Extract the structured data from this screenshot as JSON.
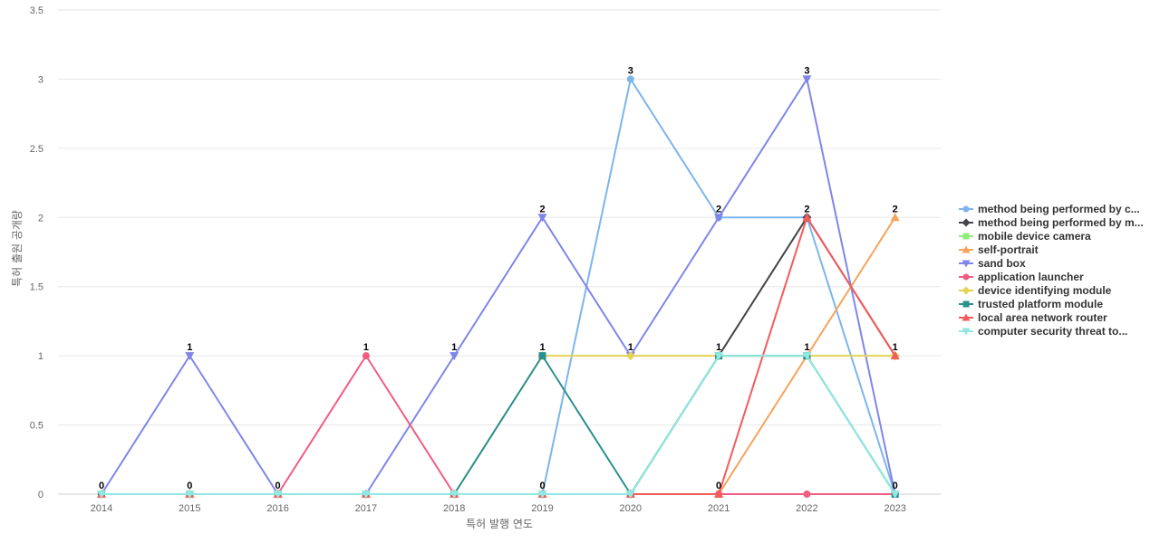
{
  "chart_data": {
    "type": "line",
    "xlabel": "특허 발행 연도",
    "ylabel": "특허 출원 공개량",
    "ylim": [
      0,
      3.5
    ],
    "yticks": [
      "0",
      "0.5",
      "1",
      "1.5",
      "2",
      "2.5",
      "3",
      "3.5"
    ],
    "grid": true,
    "legend_position": "right",
    "categories": [
      "2014",
      "2015",
      "2016",
      "2017",
      "2018",
      "2019",
      "2020",
      "2021",
      "2022",
      "2023"
    ],
    "series": [
      {
        "name": "method being performed by c...",
        "color": "#7cb5ec",
        "marker": "circle",
        "values": [
          0,
          0,
          0,
          0,
          0,
          0,
          3,
          2,
          2,
          0
        ]
      },
      {
        "name": "method being performed by m...",
        "color": "#434348",
        "marker": "diamond",
        "values": [
          0,
          0,
          0,
          0,
          0,
          0,
          0,
          1,
          2,
          1
        ]
      },
      {
        "name": "mobile device camera",
        "color": "#90ed7d",
        "marker": "square",
        "values": [
          0,
          0,
          0,
          0,
          0,
          0,
          0,
          1,
          1,
          0
        ]
      },
      {
        "name": "self-portrait",
        "color": "#f7a35c",
        "marker": "triangle",
        "values": [
          0,
          0,
          0,
          0,
          0,
          0,
          0,
          0,
          1,
          2
        ]
      },
      {
        "name": "sand box",
        "color": "#8085e9",
        "marker": "triangle-down",
        "values": [
          0,
          1,
          0,
          0,
          1,
          2,
          1,
          2,
          3,
          0
        ]
      },
      {
        "name": "application launcher",
        "color": "#f15c80",
        "marker": "circle",
        "values": [
          0,
          0,
          0,
          1,
          0,
          0,
          0,
          0,
          0,
          0
        ]
      },
      {
        "name": "device identifying module",
        "color": "#e4d354",
        "marker": "diamond",
        "values": [
          0,
          0,
          0,
          0,
          0,
          1,
          1,
          1,
          1,
          1
        ]
      },
      {
        "name": "trusted platform module",
        "color": "#2b908f",
        "marker": "square",
        "values": [
          0,
          0,
          0,
          0,
          0,
          1,
          0,
          1,
          1,
          0
        ]
      },
      {
        "name": "local area network router",
        "color": "#f45b5b",
        "marker": "triangle",
        "values": [
          0,
          0,
          0,
          0,
          0,
          0,
          0,
          0,
          2,
          1
        ]
      },
      {
        "name": "computer security threat to...",
        "color": "#91e8e1",
        "marker": "triangle-down",
        "values": [
          0,
          0,
          0,
          0,
          0,
          0,
          0,
          1,
          1,
          0
        ]
      }
    ],
    "data_labels": [
      "0",
      "1",
      "0",
      "1",
      "1",
      "2",
      "3",
      "2",
      "3",
      "2"
    ],
    "bottom_labels": [
      "",
      "0",
      "",
      "",
      "",
      "0",
      "",
      "0",
      "",
      "0"
    ],
    "mid_labels": [
      "",
      "",
      "",
      "",
      "",
      "1",
      "1",
      "1",
      "1",
      "1"
    ],
    "extra_labels": [
      "",
      "",
      "",
      "",
      "",
      "",
      "",
      "",
      "2",
      ""
    ]
  }
}
